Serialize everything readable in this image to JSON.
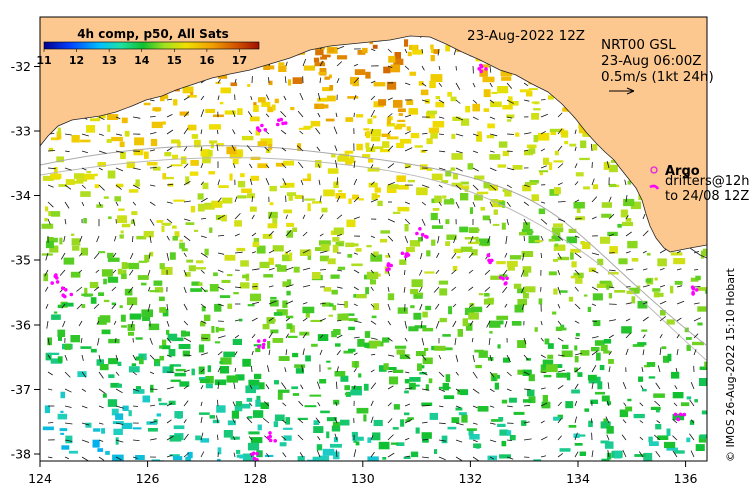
{
  "map": {
    "date_title": "23-Aug-2022 12Z",
    "product_block": {
      "line1": "NRT00 GSL",
      "line2": "23-Aug 06:00Z",
      "line3": "0.5m/s (1kt 24h)"
    },
    "colorbar": {
      "title": "4h comp, p50, All Sats",
      "tick_labels": [
        "11",
        "12",
        "13",
        "14",
        "15",
        "16",
        "17"
      ],
      "range": [
        11,
        17.6
      ]
    },
    "legend": {
      "argo_label": "Argo",
      "drifters_line1": "drifters@12h",
      "drifters_line2": "to 24/08 12Z"
    },
    "credit": "© IMOS 26-Aug-2022 15:10 Hobart",
    "x_axis": {
      "ticks": [
        "124",
        "126",
        "128",
        "130",
        "132",
        "134",
        "136"
      ],
      "range": [
        124,
        136.4
      ]
    },
    "y_axis": {
      "ticks": [
        "-32",
        "-33",
        "-34",
        "-35",
        "-36",
        "-37",
        "-38"
      ],
      "range": [
        -38.05,
        -31.35
      ]
    },
    "colors": {
      "land": "#fcc88f",
      "ocean_nodata": "#ffffff",
      "argo_marker": "#e020e0",
      "drifter": "#ff00ff",
      "track_line": "#a9a9a9"
    }
  }
}
